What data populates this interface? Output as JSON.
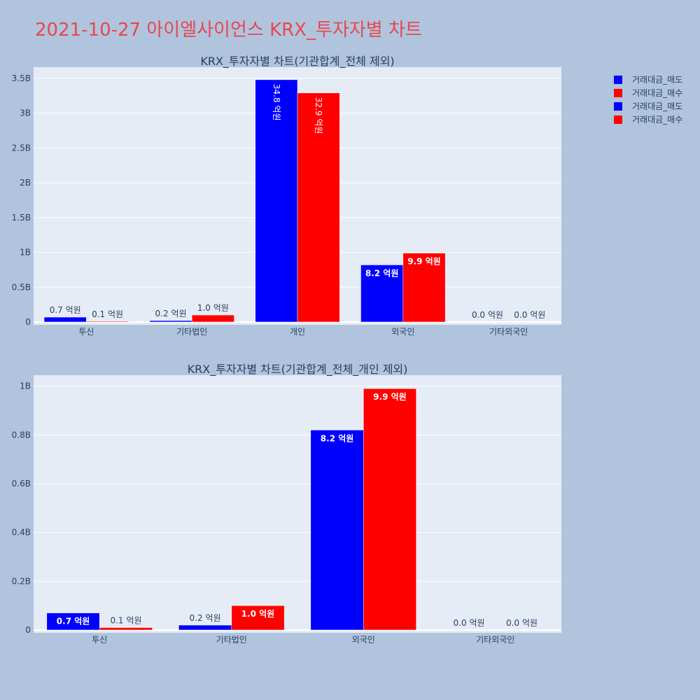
{
  "page": {
    "title": "2021-10-27 아이엘사이언스 KRX_투자자별 차트",
    "title_color": "#e8474f",
    "background": "#b0c4de",
    "plot_background": "#e5ecf6"
  },
  "legend": {
    "placement": "top-right",
    "items": [
      {
        "label": "거래대금_매도",
        "color": "#0000ff"
      },
      {
        "label": "거래대금_매수",
        "color": "#ff0000"
      },
      {
        "label": "거래대금_매도",
        "color": "#0000ff"
      },
      {
        "label": "거래대금_매수",
        "color": "#ff0000"
      }
    ]
  },
  "chart_data": [
    {
      "type": "bar",
      "title": "KRX_투자자별 차트(기관합계_전체 제외)",
      "categories": [
        "투신",
        "기타법인",
        "개인",
        "외국인",
        "기타외국인"
      ],
      "series": [
        {
          "name": "거래대금_매도",
          "color": "#0000ff",
          "values": [
            70000000,
            20000000,
            3480000000,
            820000000,
            0
          ],
          "labels": [
            "0.7 억원",
            "0.2 억원",
            "34.8 억원",
            "8.2 억원",
            "0.0 억원"
          ]
        },
        {
          "name": "거래대금_매수",
          "color": "#ff0000",
          "values": [
            10000000,
            100000000,
            3290000000,
            990000000,
            0
          ],
          "labels": [
            "0.1 억원",
            "1.0 억원",
            "32.9 억원",
            "9.9 억원",
            "0.0 억원"
          ]
        }
      ],
      "yticks": [
        {
          "value": 0,
          "label": "0"
        },
        {
          "value": 500000000,
          "label": "0.5B"
        },
        {
          "value": 1000000000,
          "label": "1B"
        },
        {
          "value": 1500000000,
          "label": "1.5B"
        },
        {
          "value": 2000000000,
          "label": "2B"
        },
        {
          "value": 2500000000,
          "label": "2.5B"
        },
        {
          "value": 3000000000,
          "label": "3B"
        },
        {
          "value": 3500000000,
          "label": "3.5B"
        }
      ],
      "ylim": [
        0,
        3660000000
      ],
      "grid": true
    },
    {
      "type": "bar",
      "title": "KRX_투자자별 차트(기관합계_전체_개인 제외)",
      "categories": [
        "투신",
        "기타법인",
        "외국인",
        "기타외국인"
      ],
      "series": [
        {
          "name": "거래대금_매도",
          "color": "#0000ff",
          "values": [
            70000000,
            20000000,
            820000000,
            0
          ],
          "labels": [
            "0.7 억원",
            "0.2 억원",
            "8.2 억원",
            "0.0 억원"
          ]
        },
        {
          "name": "거래대금_매수",
          "color": "#ff0000",
          "values": [
            10000000,
            100000000,
            990000000,
            0
          ],
          "labels": [
            "0.1 억원",
            "1.0 억원",
            "9.9 억원",
            "0.0 억원"
          ]
        }
      ],
      "yticks": [
        {
          "value": 0,
          "label": "0"
        },
        {
          "value": 200000000,
          "label": "0.2B"
        },
        {
          "value": 400000000,
          "label": "0.4B"
        },
        {
          "value": 600000000,
          "label": "0.6B"
        },
        {
          "value": 800000000,
          "label": "0.8B"
        },
        {
          "value": 1000000000,
          "label": "1B"
        }
      ],
      "ylim": [
        0,
        1045000000
      ],
      "grid": true
    }
  ]
}
